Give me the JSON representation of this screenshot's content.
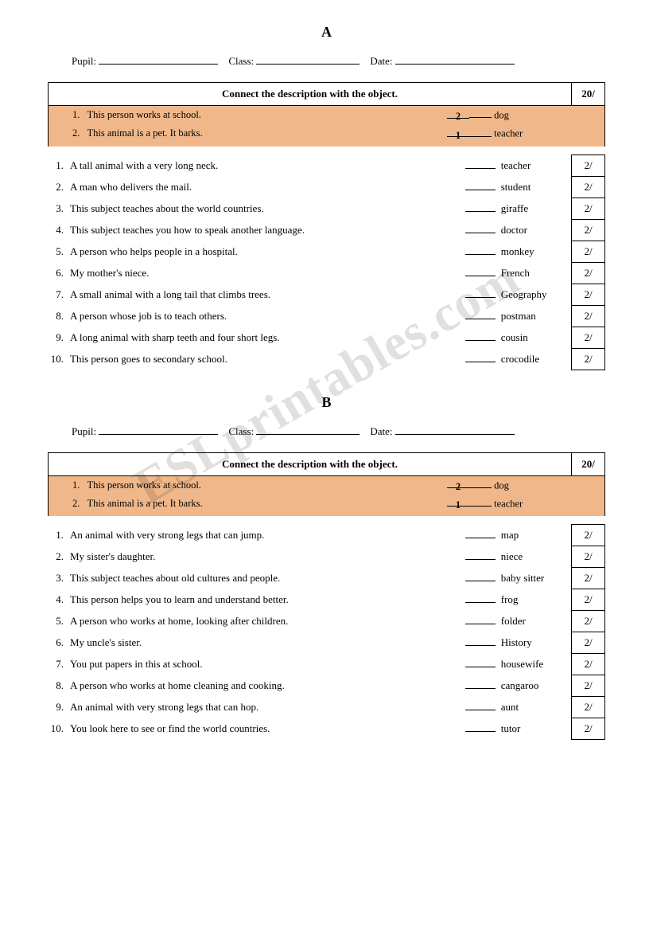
{
  "watermark": "ESLprintables.com",
  "labels": {
    "pupil": "Pupil:",
    "class": "Class:",
    "date": "Date:",
    "instruction": "Connect the description with the object.",
    "total_score": "20/",
    "per_score": "2/"
  },
  "sections": [
    {
      "letter": "A",
      "examples": [
        {
          "num": "1.",
          "desc": "This person works at school.",
          "ans_num": "2",
          "ans_word": "dog"
        },
        {
          "num": "2.",
          "desc": "This animal is a pet. It barks.",
          "ans_num": "1",
          "ans_word": "teacher"
        }
      ],
      "questions": [
        {
          "n": "1.",
          "desc": "A tall animal with a very long neck.",
          "word": "teacher"
        },
        {
          "n": "2.",
          "desc": "A man who delivers the mail.",
          "word": "student"
        },
        {
          "n": "3.",
          "desc": "This subject teaches about the world countries.",
          "word": "giraffe"
        },
        {
          "n": "4.",
          "desc": "This subject teaches you how to speak another language.",
          "word": "doctor"
        },
        {
          "n": "5.",
          "desc": "A person who helps people in a hospital.",
          "word": "monkey"
        },
        {
          "n": "6.",
          "desc": "My mother's niece.",
          "word": "French"
        },
        {
          "n": "7.",
          "desc": "A small animal with a long tail that climbs trees.",
          "word": "Geography"
        },
        {
          "n": "8.",
          "desc": "A person whose job is to teach others.",
          "word": "postman"
        },
        {
          "n": "9.",
          "desc": "A long animal with sharp teeth and four short legs.",
          "word": "cousin"
        },
        {
          "n": "10.",
          "desc": "This person goes to secondary school.",
          "word": "crocodile"
        }
      ]
    },
    {
      "letter": "B",
      "examples": [
        {
          "num": "1.",
          "desc": "This person works at school.",
          "ans_num": "2",
          "ans_word": "dog"
        },
        {
          "num": "2.",
          "desc": "This animal is a pet. It barks.",
          "ans_num": "1",
          "ans_word": "teacher"
        }
      ],
      "questions": [
        {
          "n": "1.",
          "desc": "An animal with very strong legs that can jump.",
          "word": "map"
        },
        {
          "n": "2.",
          "desc": "My sister's daughter.",
          "word": "niece"
        },
        {
          "n": "3.",
          "desc": "This subject teaches about old cultures and people.",
          "word": "baby sitter"
        },
        {
          "n": "4.",
          "desc": "This person helps you to learn and understand better.",
          "word": "frog"
        },
        {
          "n": "5.",
          "desc": "A person who works at home, looking after children.",
          "word": "folder"
        },
        {
          "n": "6.",
          "desc": "My uncle's sister.",
          "word": "History"
        },
        {
          "n": "7.",
          "desc": "You put papers in this at school.",
          "word": "housewife"
        },
        {
          "n": "8.",
          "desc": "A person who works at home cleaning and cooking.",
          "word": "cangaroo"
        },
        {
          "n": "9.",
          "desc": "An animal with very strong legs that can hop.",
          "word": "aunt"
        },
        {
          "n": "10.",
          "desc": "You look here to see or find the world countries.",
          "word": "tutor"
        }
      ]
    }
  ]
}
